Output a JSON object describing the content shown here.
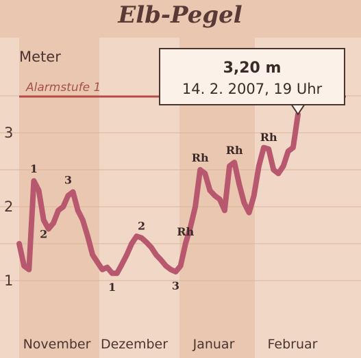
{
  "chart_data": {
    "type": "line",
    "title": "Elb-Pegel",
    "ylabel": "Meter",
    "ylim": [
      1,
      3.3
    ],
    "yticks": [
      "1",
      "2",
      "3"
    ],
    "months": [
      "November",
      "Dezember",
      "Januar",
      "Februar"
    ],
    "alarm": {
      "label": "Alarmstufe 1",
      "value": 3.5
    },
    "callout": {
      "value": "3,20 m",
      "date": "14. 2. 2007, 19 Uhr"
    },
    "series": [
      {
        "values": [
          1.5,
          1.2,
          1.15,
          2.35,
          2.22,
          1.82,
          1.7,
          1.78,
          1.95,
          2.0,
          2.15,
          2.2,
          1.95,
          1.82,
          1.6,
          1.35,
          1.25,
          1.15,
          1.18,
          1.1,
          1.1,
          1.22,
          1.35,
          1.5,
          1.6,
          1.58,
          1.52,
          1.45,
          1.35,
          1.28,
          1.2,
          1.15,
          1.12,
          1.2,
          1.5,
          1.72,
          2.0,
          2.5,
          2.45,
          2.22,
          2.15,
          2.1,
          1.95,
          2.55,
          2.6,
          2.3,
          2.05,
          1.92,
          2.15,
          2.55,
          2.8,
          2.78,
          2.5,
          2.45,
          2.55,
          2.75,
          2.8,
          3.25
        ]
      }
    ],
    "annotations": [
      {
        "label": "1",
        "x": 3,
        "y": 2.35
      },
      {
        "label": "2",
        "x": 5,
        "y": 1.82
      },
      {
        "label": "3",
        "x": 10,
        "y": 2.2
      },
      {
        "label": "1",
        "x": 19,
        "y": 1.1
      },
      {
        "label": "2",
        "x": 25,
        "y": 1.58
      },
      {
        "label": "3",
        "x": 32,
        "y": 1.12
      },
      {
        "label": "Rh",
        "x": 34,
        "y": 1.5
      },
      {
        "label": "Rh",
        "x": 37,
        "y": 2.5
      },
      {
        "label": "Rh",
        "x": 44,
        "y": 2.6
      },
      {
        "label": "Rh",
        "x": 51,
        "y": 2.78
      }
    ],
    "colors": {
      "background": "#e9c7b0",
      "stripe": "#f1d7c6",
      "line": "#b8586f",
      "alarm": "#b54a46",
      "text": "#4a3430"
    }
  }
}
